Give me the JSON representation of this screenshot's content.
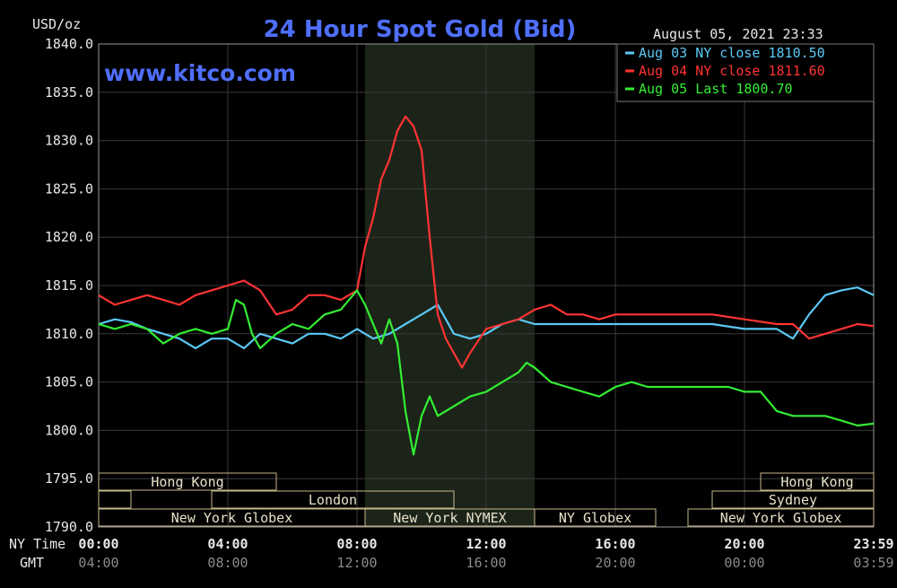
{
  "chart_data": {
    "type": "line",
    "title": "24 Hour Spot Gold (Bid)",
    "watermark": "www.kitco.com",
    "timestamp": "August 05, 2021 23:33",
    "unit_label": "USD/oz",
    "ylim": [
      1790,
      1840
    ],
    "y_ticks": [
      "1840.0",
      "1835.0",
      "1830.0",
      "1825.0",
      "1820.0",
      "1815.0",
      "1810.0",
      "1805.0",
      "1800.0",
      "1795.0",
      "1790.0"
    ],
    "x_range_hours": [
      0,
      24
    ],
    "x_ticks_ny": [
      "00:00",
      "04:00",
      "08:00",
      "12:00",
      "16:00",
      "20:00",
      "23:59"
    ],
    "x_ticks_gmt": [
      "04:00",
      "08:00",
      "12:00",
      "16:00",
      "20:00",
      "00:00",
      "03:59"
    ],
    "x_row_label_ny": "NY Time",
    "x_row_label_gmt": "GMT",
    "highlight_hours": [
      8.25,
      13.5
    ],
    "grid": true,
    "legend_position": "top-right",
    "legend": [
      {
        "label": "Aug 03 NY close 1810.50",
        "color": "#5bc8f5"
      },
      {
        "label": "Aug 04 NY close 1811.60",
        "color": "#ff3333"
      },
      {
        "label": "Aug 05 Last 1800.70",
        "color": "#33ee33"
      }
    ],
    "series": [
      {
        "name": "Aug 03 NY close 1810.50",
        "color": "#5bc8f5",
        "x": [
          0,
          0.5,
          1,
          1.5,
          2,
          2.5,
          3,
          3.5,
          4,
          4.5,
          5,
          5.5,
          6,
          6.5,
          7,
          7.5,
          8,
          8.5,
          9,
          9.5,
          10,
          10.5,
          11,
          11.5,
          12,
          12.5,
          13,
          13.5,
          14,
          15,
          16,
          17,
          18,
          19,
          20,
          20.5,
          21,
          21.5,
          22,
          22.5,
          23,
          23.5,
          24
        ],
        "values": [
          1811,
          1811.5,
          1811.2,
          1810.5,
          1810,
          1809.5,
          1808.5,
          1809.5,
          1809.5,
          1808.5,
          1810,
          1809.5,
          1809,
          1810,
          1810,
          1809.5,
          1810.5,
          1809.5,
          1810,
          1811,
          1812,
          1813,
          1810,
          1809.5,
          1810,
          1811,
          1811.5,
          1811,
          1811,
          1811,
          1811,
          1811,
          1811,
          1811,
          1810.5,
          1810.5,
          1810.5,
          1809.5,
          1812,
          1814,
          1814.5,
          1814.8,
          1814
        ]
      },
      {
        "name": "Aug 04 NY close 1811.60",
        "color": "#ff3333",
        "x": [
          0,
          0.5,
          1,
          1.5,
          2,
          2.5,
          3,
          3.5,
          4,
          4.5,
          5,
          5.5,
          6,
          6.5,
          7,
          7.5,
          8,
          8.25,
          8.5,
          8.75,
          9,
          9.25,
          9.5,
          9.75,
          10,
          10.25,
          10.5,
          10.75,
          11,
          11.25,
          11.5,
          12,
          12.5,
          13,
          13.5,
          14,
          14.5,
          15,
          15.5,
          16,
          17,
          18,
          19,
          20,
          21,
          21.5,
          22,
          22.5,
          23,
          23.5,
          24
        ],
        "values": [
          1814,
          1813,
          1813.5,
          1814,
          1813.5,
          1813,
          1814,
          1814.5,
          1815,
          1815.5,
          1814.5,
          1812,
          1812.5,
          1814,
          1814,
          1813.5,
          1814.5,
          1819,
          1822,
          1826,
          1828,
          1831,
          1832.5,
          1831.5,
          1829,
          1820,
          1812,
          1809.5,
          1808,
          1806.5,
          1808,
          1810.5,
          1811,
          1811.5,
          1812.5,
          1813,
          1812,
          1812,
          1811.5,
          1812,
          1812,
          1812,
          1812,
          1811.5,
          1811,
          1811,
          1809.5,
          1810,
          1810.5,
          1811,
          1810.8
        ]
      },
      {
        "name": "Aug 05 Last 1800.70",
        "color": "#33ee33",
        "x": [
          0,
          0.5,
          1,
          1.5,
          2,
          2.5,
          3,
          3.5,
          4,
          4.25,
          4.5,
          4.75,
          5,
          5.5,
          6,
          6.5,
          7,
          7.5,
          8,
          8.25,
          8.5,
          8.75,
          9,
          9.25,
          9.5,
          9.75,
          10,
          10.25,
          10.5,
          10.75,
          11,
          11.25,
          11.5,
          12,
          12.5,
          13,
          13.25,
          13.5,
          14,
          14.5,
          15,
          15.5,
          16,
          16.5,
          17,
          18,
          18.5,
          19,
          19.5,
          20,
          20.5,
          21,
          21.5,
          22,
          22.5,
          23,
          23.5,
          24
        ],
        "values": [
          1811,
          1810.5,
          1811,
          1810.5,
          1809,
          1810,
          1810.5,
          1810,
          1810.5,
          1813.5,
          1813,
          1810,
          1808.5,
          1810,
          1811,
          1810.5,
          1812,
          1812.5,
          1814.5,
          1813,
          1811,
          1809,
          1811.5,
          1809,
          1802,
          1797.5,
          1801.5,
          1803.5,
          1801.5,
          1802,
          1802.5,
          1803,
          1803.5,
          1804,
          1805,
          1806,
          1807,
          1806.5,
          1805,
          1804.5,
          1804,
          1803.5,
          1804.5,
          1805,
          1804.5,
          1804.5,
          1804.5,
          1804.5,
          1804.5,
          1804,
          1804,
          1802,
          1801.5,
          1801.5,
          1801.5,
          1801,
          1800.5,
          1800.7
        ]
      }
    ],
    "sessions": [
      {
        "label": "Hong Kong",
        "start": 0,
        "end": 5.5,
        "row": 0,
        "show_label": true
      },
      {
        "label": "Hong Kong",
        "start": 20.5,
        "end": 24,
        "row": 0,
        "show_label": true
      },
      {
        "label": "",
        "start": 0,
        "end": 1,
        "row": 1,
        "show_label": false
      },
      {
        "label": "London",
        "start": 3.5,
        "end": 11,
        "row": 1,
        "show_label": true
      },
      {
        "label": "Sydney",
        "start": 19,
        "end": 24,
        "row": 1,
        "show_label": true
      },
      {
        "label": "New York Globex",
        "start": 0,
        "end": 8.25,
        "row": 2,
        "show_label": true
      },
      {
        "label": "New York NYMEX",
        "start": 8.25,
        "end": 13.5,
        "row": 2,
        "show_label": true
      },
      {
        "label": "NY Globex",
        "start": 13.5,
        "end": 17.25,
        "row": 2,
        "show_label": true
      },
      {
        "label": "New York Globex",
        "start": 18.25,
        "end": 24,
        "row": 2,
        "show_label": true
      }
    ]
  }
}
